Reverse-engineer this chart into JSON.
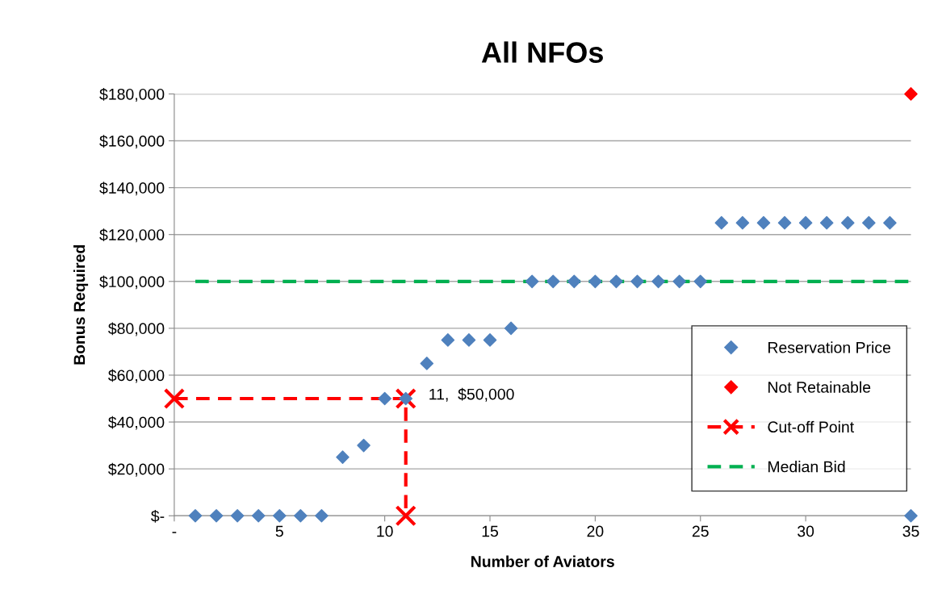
{
  "chart_data": {
    "type": "scatter",
    "title": "All NFOs",
    "xlabel": "Number of Aviators",
    "ylabel": "Bonus Required",
    "xlim": [
      0,
      35
    ],
    "xticks": [
      {
        "value": 0,
        "label": "-"
      },
      5,
      10,
      15,
      20,
      25,
      30,
      35
    ],
    "ylim": [
      0,
      180000
    ],
    "yticks": [
      {
        "value": 0,
        "label": "$-"
      },
      {
        "value": 20000,
        "label": "$20,000"
      },
      {
        "value": 40000,
        "label": "$40,000"
      },
      {
        "value": 60000,
        "label": "$60,000"
      },
      {
        "value": 80000,
        "label": "$80,000"
      },
      {
        "value": 100000,
        "label": "$100,000"
      },
      {
        "value": 120000,
        "label": "$120,000"
      },
      {
        "value": 140000,
        "label": "$140,000"
      },
      {
        "value": 160000,
        "label": "$160,000"
      },
      {
        "value": 180000,
        "label": "$180,000"
      }
    ],
    "grid": "y",
    "legend": "right",
    "series": [
      {
        "name": "Reservation Price",
        "marker": "diamond",
        "color": "#4f81bd",
        "x": [
          1,
          2,
          3,
          4,
          5,
          6,
          7,
          8,
          9,
          10,
          11,
          12,
          13,
          14,
          15,
          16,
          17,
          18,
          19,
          20,
          21,
          22,
          23,
          24,
          25,
          26,
          27,
          28,
          29,
          30,
          31,
          32,
          33,
          34,
          35
        ],
        "values": [
          0,
          0,
          0,
          0,
          0,
          0,
          0,
          25000,
          30000,
          50000,
          50000,
          65000,
          75000,
          75000,
          75000,
          80000,
          100000,
          100000,
          100000,
          100000,
          100000,
          100000,
          100000,
          100000,
          100000,
          125000,
          125000,
          125000,
          125000,
          125000,
          125000,
          125000,
          125000,
          125000,
          0
        ]
      },
      {
        "name": "Not Retainable",
        "marker": "diamond",
        "color": "#ff0000",
        "x": [
          35
        ],
        "values": [
          180000
        ]
      },
      {
        "name": "Cut-off Point",
        "type": "line",
        "marker": "cross",
        "line_style": "dashed",
        "color": "#ff0000",
        "x": [
          0,
          11,
          11
        ],
        "values": [
          50000,
          50000,
          0
        ]
      },
      {
        "name": "Median Bid",
        "type": "line",
        "marker": "none",
        "line_style": "dashed",
        "color": "#00b050",
        "x": [
          1,
          35
        ],
        "values": [
          100000,
          100000
        ]
      }
    ],
    "annotations": [
      "11,  $50,000"
    ]
  }
}
